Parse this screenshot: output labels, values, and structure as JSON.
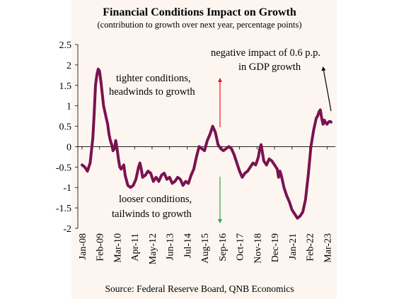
{
  "chart_data": {
    "type": "line",
    "title": "Financial Conditions Impact on Growth",
    "subtitle": "(contribution to growth over next year, percentage points)",
    "xlabel": "",
    "ylabel": "",
    "ylim": [
      -2,
      2.5
    ],
    "yticks": [
      "2.5",
      "2",
      "1.5",
      "1",
      "0.5",
      "0",
      "-0.5",
      "-1",
      "-1.5",
      "-2"
    ],
    "xticks": [
      "Jan-08",
      "Feb-09",
      "Mar-10",
      "Apr-11",
      "May-12",
      "Jun-13",
      "Jul-14",
      "Aug-15",
      "Sep-16",
      "Oct-17",
      "Nov-18",
      "Dec-19",
      "Jan-21",
      "Feb-22",
      "Mar-23"
    ],
    "xrange": [
      "2008-01",
      "2023-06"
    ],
    "line_color": "#7b1251",
    "grid": false,
    "legend": "none",
    "source": "Source: Federal Reserve Board, QNB Economics",
    "annotations": {
      "tighter": [
        "tighter conditions,",
        "headwinds to growth"
      ],
      "looser": [
        "looser conditions,",
        "tailwinds to growth"
      ],
      "impact": [
        "negative  impact of 0.6 p.p.",
        "in GDP growth"
      ]
    },
    "arrow_colors": {
      "up": "#e8191e",
      "down": "#2aa548",
      "pointer": "#000000"
    },
    "series": [
      {
        "dates": [
          "2008-01",
          "2008-03",
          "2008-05",
          "2008-07",
          "2008-09",
          "2008-10",
          "2008-11",
          "2008-12",
          "2009-01",
          "2009-02",
          "2009-03",
          "2009-04",
          "2009-05",
          "2009-06",
          "2009-07",
          "2009-08",
          "2009-09",
          "2009-10",
          "2009-11",
          "2009-12",
          "2010-01",
          "2010-02",
          "2010-03",
          "2010-04",
          "2010-05",
          "2010-06",
          "2010-07",
          "2010-08",
          "2010-09",
          "2010-11",
          "2011-01",
          "2011-03",
          "2011-05",
          "2011-07",
          "2011-08",
          "2011-09",
          "2011-10",
          "2011-12",
          "2012-02",
          "2012-04",
          "2012-06",
          "2012-08",
          "2012-10",
          "2012-12",
          "2013-02",
          "2013-04",
          "2013-06",
          "2013-08",
          "2013-10",
          "2013-12",
          "2014-02",
          "2014-04",
          "2014-06",
          "2014-08",
          "2014-10",
          "2014-12",
          "2015-02",
          "2015-04",
          "2015-06",
          "2015-08",
          "2015-10",
          "2015-12",
          "2016-02",
          "2016-04",
          "2016-06",
          "2016-08",
          "2016-10",
          "2016-12",
          "2017-02",
          "2017-04",
          "2017-06",
          "2017-08",
          "2017-10",
          "2017-12",
          "2018-02",
          "2018-04",
          "2018-06",
          "2018-08",
          "2018-10",
          "2018-11",
          "2018-12",
          "2019-01",
          "2019-02",
          "2019-04",
          "2019-06",
          "2019-08",
          "2019-10",
          "2019-12",
          "2020-02",
          "2020-03",
          "2020-04",
          "2020-05",
          "2020-07",
          "2020-09",
          "2020-11",
          "2021-01",
          "2021-03",
          "2021-05",
          "2021-07",
          "2021-09",
          "2021-11",
          "2022-01",
          "2022-03",
          "2022-05",
          "2022-07",
          "2022-08",
          "2022-09",
          "2022-10",
          "2022-11",
          "2022-12",
          "2023-01",
          "2023-02",
          "2023-03",
          "2023-04",
          "2023-05",
          "2023-06"
        ],
        "values": [
          -0.45,
          -0.5,
          -0.6,
          -0.4,
          0.2,
          0.8,
          1.5,
          1.75,
          1.9,
          1.85,
          1.6,
          1.3,
          1.0,
          0.85,
          0.7,
          0.55,
          0.3,
          0.15,
          0.05,
          -0.1,
          -0.05,
          0.15,
          -0.05,
          -0.3,
          -0.5,
          -0.55,
          -0.5,
          -0.45,
          -0.7,
          -0.95,
          -1.0,
          -0.95,
          -0.8,
          -0.5,
          -0.4,
          -0.55,
          -0.75,
          -0.7,
          -0.6,
          -0.65,
          -0.85,
          -0.75,
          -0.85,
          -0.7,
          -0.65,
          -0.8,
          -0.75,
          -0.9,
          -0.85,
          -0.75,
          -0.8,
          -0.95,
          -0.85,
          -0.9,
          -0.7,
          -0.55,
          -0.25,
          0.0,
          -0.05,
          -0.1,
          0.15,
          0.3,
          0.5,
          0.35,
          0.05,
          -0.05,
          -0.1,
          -0.05,
          0.0,
          -0.05,
          -0.2,
          -0.4,
          -0.6,
          -0.75,
          -0.65,
          -0.6,
          -0.5,
          -0.4,
          -0.45,
          -0.35,
          -0.25,
          -0.05,
          0.05,
          -0.35,
          -0.45,
          -0.3,
          -0.35,
          -0.45,
          -0.55,
          -0.75,
          -0.6,
          -0.7,
          -1.0,
          -1.2,
          -1.35,
          -1.55,
          -1.65,
          -1.75,
          -1.7,
          -1.6,
          -1.3,
          -0.7,
          0.0,
          0.4,
          0.7,
          0.75,
          0.85,
          0.9,
          0.7,
          0.55,
          0.65,
          0.58,
          0.55,
          0.6,
          0.62,
          0.6
        ]
      }
    ]
  }
}
